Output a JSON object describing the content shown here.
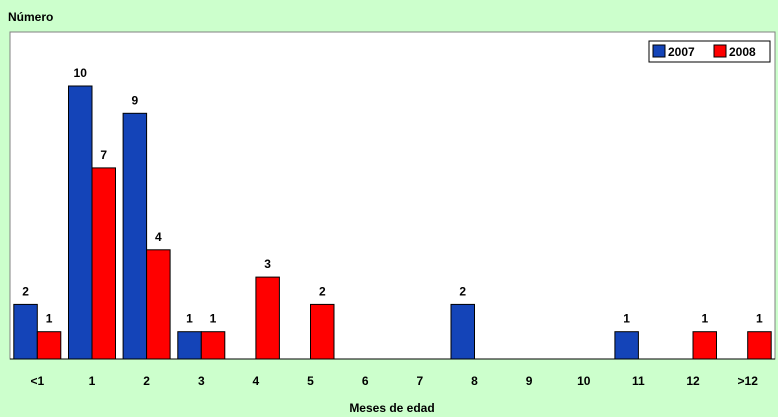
{
  "chart_data": {
    "type": "bar",
    "ylabel": "Número",
    "xlabel": "Meses de edad",
    "categories": [
      "<1",
      "1",
      "2",
      "3",
      "4",
      "5",
      "6",
      "7",
      "8",
      "9",
      "10",
      "11",
      "12",
      ">12"
    ],
    "series": [
      {
        "name": "2007",
        "color": "#1444B8",
        "values": [
          2,
          10,
          9,
          1,
          0,
          0,
          0,
          0,
          2,
          0,
          0,
          1,
          0,
          0
        ]
      },
      {
        "name": "2008",
        "color": "#FF0000",
        "values": [
          1,
          7,
          4,
          1,
          3,
          2,
          0,
          0,
          0,
          0,
          0,
          0,
          1,
          1
        ]
      }
    ],
    "ylim": [
      0,
      11
    ],
    "grid": false,
    "legend_position": "top-right",
    "data_labels": true
  }
}
